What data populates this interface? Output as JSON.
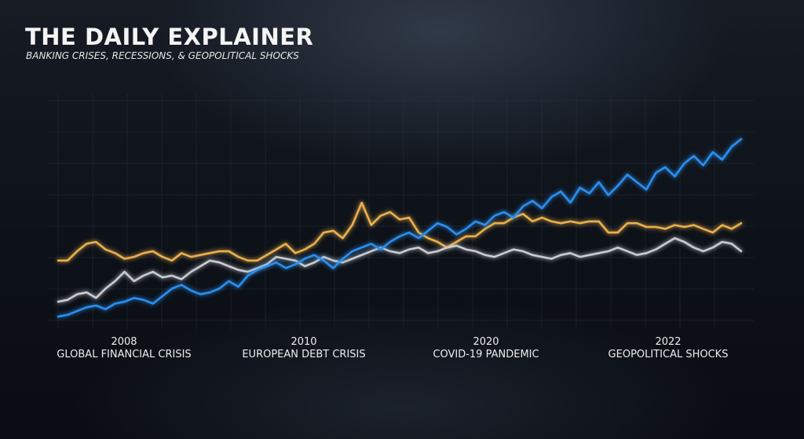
{
  "header": {
    "title": "THE DAILY EXPLAINER",
    "subtitle": "BANKING CRISES, RECESSIONS, & GEOPOLITICAL SHOCKS"
  },
  "colors": {
    "orange": "#e9b04e",
    "white": "#c9ccd2",
    "blue": "#2a8ff0",
    "axis": "#b9bec6"
  },
  "chart_data": {
    "type": "line",
    "title": "",
    "xlabel": "",
    "ylabel": "",
    "grid": true,
    "events": [
      {
        "year": "2008",
        "label": "GLOBAL FINANCIAL CRISIS"
      },
      {
        "year": "2010",
        "label": "EUROPEAN DEBT CRISIS"
      },
      {
        "year": "2020",
        "label": "COVID-19 PANDEMIC"
      },
      {
        "year": "2022",
        "label": "GEOPOLITICAL SHOCKS"
      }
    ],
    "series": [
      {
        "color_key": "orange",
        "values": [
          0.32,
          0.32,
          0.37,
          0.41,
          0.42,
          0.38,
          0.36,
          0.33,
          0.34,
          0.36,
          0.37,
          0.34,
          0.32,
          0.36,
          0.34,
          0.35,
          0.36,
          0.37,
          0.37,
          0.34,
          0.32,
          0.32,
          0.35,
          0.38,
          0.41,
          0.36,
          0.38,
          0.41,
          0.47,
          0.48,
          0.44,
          0.51,
          0.63,
          0.51,
          0.56,
          0.58,
          0.54,
          0.55,
          0.47,
          0.44,
          0.42,
          0.39,
          0.42,
          0.45,
          0.45,
          0.49,
          0.52,
          0.52,
          0.55,
          0.57,
          0.53,
          0.55,
          0.53,
          0.52,
          0.53,
          0.52,
          0.53,
          0.53,
          0.47,
          0.47,
          0.52,
          0.52,
          0.5,
          0.5,
          0.49,
          0.51,
          0.5,
          0.51,
          0.49,
          0.47,
          0.51,
          0.49,
          0.52
        ]
      },
      {
        "color_key": "white",
        "values": [
          0.1,
          0.11,
          0.14,
          0.15,
          0.12,
          0.17,
          0.21,
          0.26,
          0.21,
          0.24,
          0.26,
          0.23,
          0.24,
          0.22,
          0.26,
          0.29,
          0.32,
          0.31,
          0.29,
          0.27,
          0.26,
          0.28,
          0.3,
          0.34,
          0.33,
          0.32,
          0.29,
          0.31,
          0.34,
          0.32,
          0.31,
          0.33,
          0.35,
          0.37,
          0.39,
          0.37,
          0.36,
          0.38,
          0.39,
          0.36,
          0.37,
          0.39,
          0.4,
          0.38,
          0.37,
          0.35,
          0.34,
          0.36,
          0.38,
          0.37,
          0.35,
          0.34,
          0.33,
          0.35,
          0.36,
          0.34,
          0.35,
          0.36,
          0.37,
          0.39,
          0.37,
          0.35,
          0.36,
          0.38,
          0.41,
          0.44,
          0.42,
          0.39,
          0.37,
          0.39,
          0.42,
          0.41,
          0.37
        ]
      },
      {
        "color_key": "blue",
        "values": [
          0.02,
          0.03,
          0.05,
          0.07,
          0.08,
          0.06,
          0.09,
          0.1,
          0.12,
          0.11,
          0.09,
          0.13,
          0.17,
          0.19,
          0.16,
          0.14,
          0.15,
          0.17,
          0.21,
          0.18,
          0.24,
          0.27,
          0.29,
          0.31,
          0.28,
          0.3,
          0.33,
          0.35,
          0.32,
          0.28,
          0.33,
          0.37,
          0.39,
          0.41,
          0.38,
          0.42,
          0.45,
          0.47,
          0.44,
          0.48,
          0.52,
          0.5,
          0.46,
          0.49,
          0.53,
          0.51,
          0.56,
          0.58,
          0.55,
          0.61,
          0.64,
          0.6,
          0.66,
          0.69,
          0.63,
          0.71,
          0.68,
          0.74,
          0.67,
          0.72,
          0.78,
          0.74,
          0.7,
          0.79,
          0.82,
          0.77,
          0.84,
          0.88,
          0.83,
          0.9,
          0.86,
          0.93,
          0.97
        ]
      }
    ]
  }
}
